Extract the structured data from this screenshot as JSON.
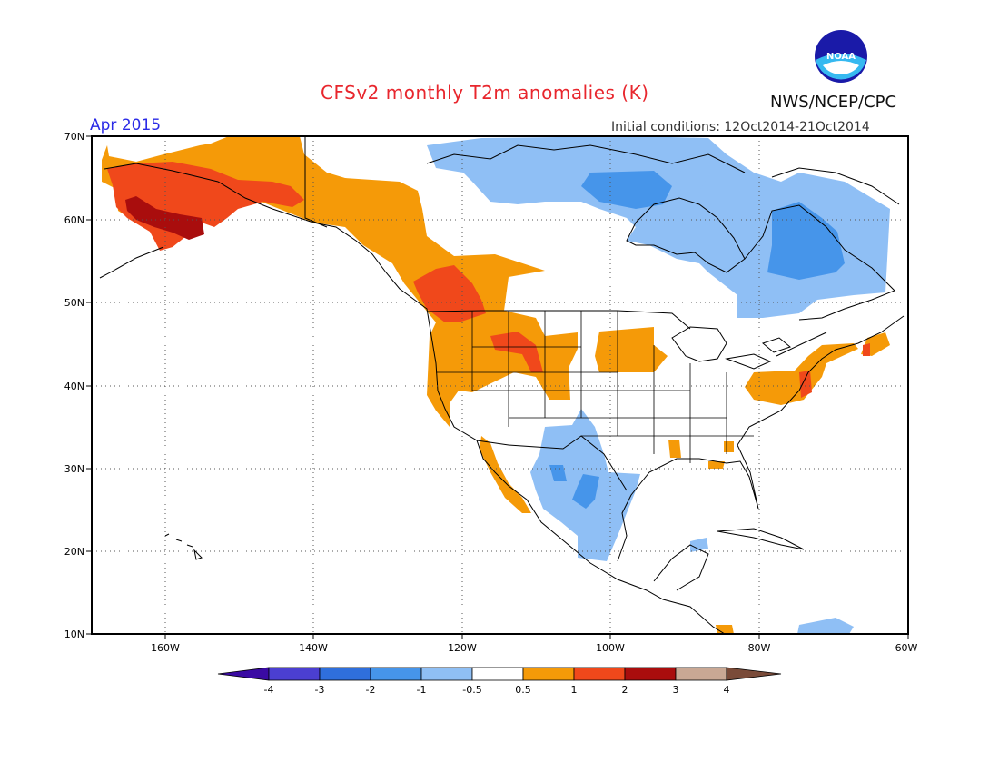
{
  "title": "CFSv2 monthly T2m anomalies (K)",
  "agency": "NWS/NCEP/CPC",
  "logo": {
    "text": "NOAA",
    "icon": "noaa-logo-icon"
  },
  "valid_month": "Apr 2015",
  "initial_conditions": "Initial conditions: 12Oct2014-21Oct2014",
  "map": {
    "lat_range": [
      10,
      70
    ],
    "lon_range": [
      -170,
      -60
    ],
    "lat_ticks": [
      {
        "value": 10,
        "label": "10N"
      },
      {
        "value": 20,
        "label": "20N"
      },
      {
        "value": 30,
        "label": "30N"
      },
      {
        "value": 40,
        "label": "40N"
      },
      {
        "value": 50,
        "label": "50N"
      },
      {
        "value": 60,
        "label": "60N"
      },
      {
        "value": 70,
        "label": "70N"
      }
    ],
    "lon_ticks": [
      {
        "value": -160,
        "label": "160W"
      },
      {
        "value": -140,
        "label": "140W"
      },
      {
        "value": -120,
        "label": "120W"
      },
      {
        "value": -100,
        "label": "100W"
      },
      {
        "value": -80,
        "label": "80W"
      },
      {
        "value": -60,
        "label": "60W"
      }
    ],
    "gridlines": "dotted"
  },
  "colorbar": {
    "colors": [
      "#3a0aa3",
      "#4b3fd1",
      "#2f6fdc",
      "#4695ea",
      "#8fbff5",
      "#ffffff",
      "#f59a08",
      "#f0481b",
      "#a90d0d",
      "#c9a894",
      "#7a4b39"
    ],
    "labels": [
      "-4",
      "-3",
      "-2",
      "-1",
      "-0.5",
      "0.5",
      "1",
      "2",
      "3",
      "4"
    ]
  },
  "anomaly_regions": [
    {
      "level": "2 to 3",
      "color": "#a90d0d",
      "lat": [
        57.5,
        61.5
      ],
      "lon": [
        -161,
        -155
      ]
    },
    {
      "level": "1 to 2",
      "color": "#f0481b",
      "lat": [
        55,
        66
      ],
      "lon": [
        -165,
        -138
      ]
    },
    {
      "level": "1 to 2",
      "color": "#f0481b",
      "lat": [
        46,
        53
      ],
      "lon": [
        -125,
        -119
      ]
    },
    {
      "level": "1 to 2",
      "color": "#f0481b",
      "lat": [
        42,
        46
      ],
      "lon": [
        -116,
        -109
      ]
    },
    {
      "level": "0.5 to 1",
      "color": "#f59a08",
      "lat": [
        38,
        70
      ],
      "lon": [
        -150,
        -110
      ]
    },
    {
      "level": "0.5 to 1",
      "color": "#f59a08",
      "lat": [
        41,
        47
      ],
      "lon": [
        -105,
        -97
      ]
    },
    {
      "level": "0.5 to 1",
      "color": "#f59a08",
      "lat": [
        37,
        45
      ],
      "lon": [
        -82,
        -68
      ]
    },
    {
      "level": "-1 to -0.5",
      "color": "#8fbff5",
      "lat": [
        18,
        36
      ],
      "lon": [
        -113,
        -97
      ]
    },
    {
      "level": "-1 to -0.5",
      "color": "#8fbff5",
      "lat": [
        48,
        70
      ],
      "lon": [
        -124,
        -62
      ]
    },
    {
      "level": "-2 to -1",
      "color": "#4695ea",
      "lat": [
        51,
        62
      ],
      "lon": [
        -84,
        -70
      ]
    },
    {
      "level": "-2 to -1",
      "color": "#4695ea",
      "lat": [
        62,
        67
      ],
      "lon": [
        -104,
        -92
      ]
    }
  ]
}
